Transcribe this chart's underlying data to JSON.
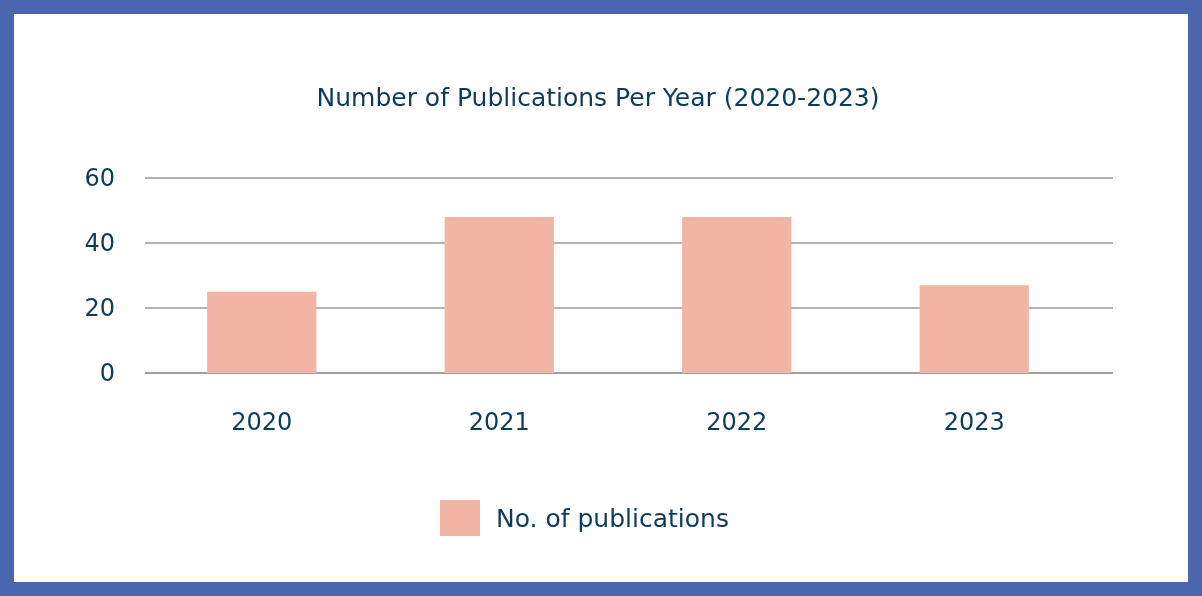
{
  "chart_data": {
    "type": "bar",
    "title": "Number of Publications Per Year (2020-2023)",
    "categories": [
      "2020",
      "2021",
      "2022",
      "2023"
    ],
    "series": [
      {
        "name": "No. of publications",
        "color": "#f2b5a5",
        "values": [
          25,
          48,
          48,
          27
        ]
      }
    ],
    "ylim": [
      0,
      60
    ],
    "yticks": [
      0,
      20,
      40,
      60
    ],
    "grid": "y",
    "legend": "bottom"
  }
}
